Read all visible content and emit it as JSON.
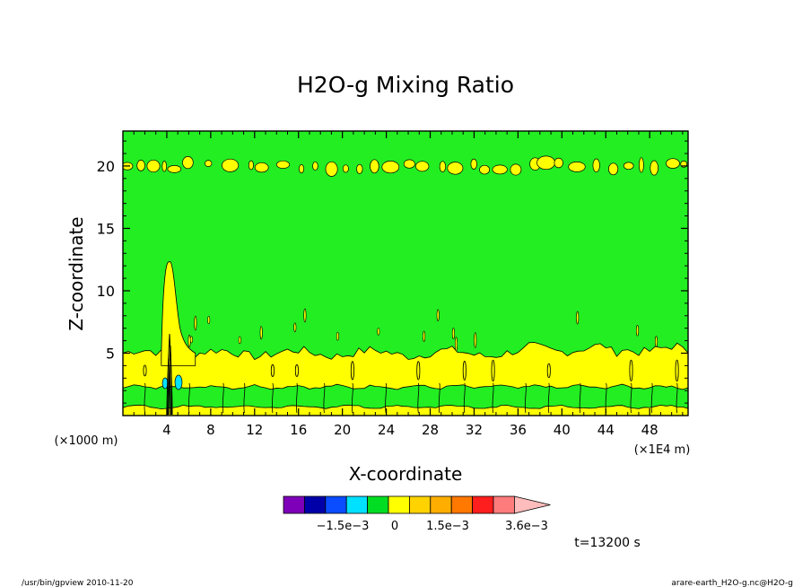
{
  "chart_data": {
    "type": "heatmap",
    "title": "H2O-g Mixing Ratio",
    "xlabel": "X-coordinate",
    "ylabel": "Z-coordinate",
    "x_unit_left": "(×1000 m)",
    "x_unit_right": "(×1E4 m)",
    "x_ticks": [
      4,
      8,
      12,
      16,
      20,
      24,
      28,
      32,
      36,
      40,
      44,
      48
    ],
    "y_ticks": [
      5,
      10,
      15,
      20
    ],
    "xlim": [
      0,
      51.5
    ],
    "ylim": [
      0,
      22.8
    ],
    "colorbar": {
      "levels": [
        "#7e00b8",
        "#0000a8",
        "#0a4cff",
        "#00e0ff",
        "#00dd22",
        "#ffff00",
        "#ffd200",
        "#ffae00",
        "#ff7800",
        "#ff1e1e",
        "#ff7c7c",
        "#ffbcbc"
      ],
      "labels": [
        "−1.5e−3",
        "0",
        "1.5e−3",
        "3.6e−3"
      ]
    },
    "background_level": "#22ee22",
    "layers": [
      {
        "color": "#ffff00",
        "z_bottom": 2.3,
        "z_top": 5.0,
        "note_level": "0–0.3e−3"
      },
      {
        "color": "#22ee22",
        "z_bottom": 0.7,
        "z_top": 2.3
      },
      {
        "color": "#ffff00",
        "z_bottom": 0.0,
        "z_top": 0.7
      }
    ],
    "plume": {
      "x_center": 4.4,
      "z_top": 12.5
    },
    "upper_band_z": 20.0
  },
  "footer": {
    "time": "t=13200 s",
    "left": "/usr/bin/gpview  2010-11-20",
    "right": "arare-earth_H2O-g.nc@H2O-g"
  }
}
